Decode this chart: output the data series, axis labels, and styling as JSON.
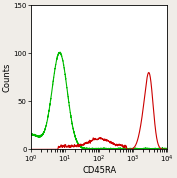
{
  "title": "",
  "xlabel": "CD45RA",
  "ylabel": "Counts",
  "xlim": [
    1,
    10000
  ],
  "ylim": [
    0,
    150
  ],
  "yticks": [
    0,
    50,
    100,
    150
  ],
  "background_color": "#f0ede8",
  "green_line_color": "#00bb00",
  "red_line_color": "#cc0000",
  "figsize": [
    1.77,
    1.78
  ],
  "dpi": 100
}
